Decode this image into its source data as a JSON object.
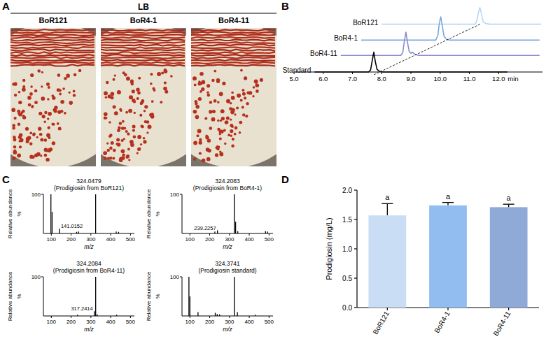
{
  "plates": {
    "panel_label": "A",
    "medium": "LB",
    "strains": [
      "BoR121",
      "BoR4-1",
      "BoR4-11"
    ]
  },
  "chart_data": [
    {
      "type": "line",
      "panel_label": "B",
      "xlabel": "min",
      "xlim": [
        5,
        13.5
      ],
      "xticks": [
        {
          "value": 5,
          "label": "5.0"
        },
        {
          "value": 6,
          "label": "6.0"
        },
        {
          "value": 7,
          "label": "7.0"
        },
        {
          "value": 8,
          "label": "8.0"
        },
        {
          "value": 9,
          "label": "9.0"
        },
        {
          "value": 10,
          "label": "10.0"
        },
        {
          "value": 11,
          "label": "11.0"
        },
        {
          "value": 12,
          "label": "12.0"
        }
      ],
      "ylim": [
        0,
        100
      ],
      "tick_labels": "x",
      "series": [
        {
          "name": "BoR121",
          "color": "#bcd7f0",
          "x": [
            8.0,
            11.2,
            11.26,
            11.31,
            11.36,
            11.41,
            11.47,
            11.56,
            11.7,
            13.45
          ],
          "values": [
            72,
            72,
            78,
            90,
            97,
            88,
            76,
            73,
            72,
            72
          ]
        },
        {
          "name": "BoR4-1",
          "color": "#7ea6da",
          "x": [
            7.3,
            9.85,
            9.92,
            9.97,
            10.02,
            10.07,
            10.13,
            10.22,
            10.35,
            13.4
          ],
          "values": [
            48,
            48,
            55,
            73,
            83,
            70,
            54,
            49,
            48,
            48
          ]
        },
        {
          "name": "BoR4-11",
          "color": "#8b8ccf",
          "x": [
            6.6,
            8.65,
            8.72,
            8.78,
            8.83,
            8.88,
            8.94,
            9.0,
            9.05,
            9.12,
            9.25,
            13.4
          ],
          "values": [
            25,
            25,
            29,
            48,
            60,
            45,
            31,
            28,
            30,
            27,
            25,
            25
          ]
        },
        {
          "name": "Standard",
          "color": "#000000",
          "x": [
            5.7,
            7.55,
            7.62,
            7.68,
            7.73,
            7.78,
            7.84,
            7.92,
            8.05,
            12.3
          ],
          "values": [
            0,
            0,
            3,
            18,
            30,
            16,
            4,
            1,
            0,
            0
          ]
        }
      ]
    },
    {
      "type": "bar",
      "panel_label": "C",
      "title": "324.0479",
      "subtitle": "(Prodigiosin from BoR121)",
      "x": [
        98,
        104,
        141.0152,
        228,
        238,
        324.0479,
        428,
        440
      ],
      "values": [
        100,
        55,
        12,
        4,
        5,
        100,
        5,
        4
      ],
      "color": "#000000",
      "xlim": [
        60,
        520
      ],
      "xticks": [
        100,
        200,
        300,
        400,
        500
      ],
      "ylim": [
        0,
        100
      ],
      "yticks": [
        100
      ],
      "xlabel": "m/z",
      "ylabel": "Relative abundance",
      "ylabel_unit": "%",
      "annotations": [
        {
          "text": "141.0152",
          "x": 141.0152,
          "y": 12
        }
      ]
    },
    {
      "type": "bar",
      "title": "324.2083",
      "subtitle": "(Prodigiosin from BoR4-1)",
      "x": [
        226,
        239.2257,
        324.2083,
        331,
        342,
        482,
        492
      ],
      "values": [
        5,
        8,
        100,
        30,
        6,
        6,
        5
      ],
      "color": "#000000",
      "xlim": [
        60,
        520
      ],
      "xticks": [
        100,
        200,
        300,
        400,
        500
      ],
      "ylim": [
        0,
        100
      ],
      "yticks": [
        100
      ],
      "xlabel": "m/z",
      "ylabel": "Relative abundance",
      "ylabel_unit": "%",
      "annotations": [
        {
          "text": "239.2257",
          "x": 239.2257,
          "y": 8
        }
      ]
    },
    {
      "type": "bar",
      "title": "324.2084",
      "subtitle": "(Prodigiosin from BoR4-11)",
      "x": [
        232,
        317.2414,
        324.2084,
        332,
        430
      ],
      "values": [
        3,
        12,
        100,
        4,
        3
      ],
      "color": "#000000",
      "xlim": [
        60,
        520
      ],
      "xticks": [
        100,
        200,
        300,
        400,
        500
      ],
      "ylim": [
        0,
        100
      ],
      "yticks": [
        100
      ],
      "xlabel": "m/z",
      "ylabel": "Relative abundance",
      "ylabel_unit": "%",
      "annotations": [
        {
          "text": "317.2414",
          "x": 317.2414,
          "y": 12
        }
      ]
    },
    {
      "type": "bar",
      "title": "324.3741",
      "subtitle": "(Prodigiosin standard)",
      "x": [
        95,
        100,
        141,
        228,
        238,
        250,
        324.3741,
        340,
        430
      ],
      "values": [
        100,
        50,
        10,
        8,
        5,
        4,
        100,
        10,
        3
      ],
      "color": "#000000",
      "xlim": [
        60,
        520
      ],
      "xticks": [
        100,
        200,
        300,
        400,
        500
      ],
      "ylim": [
        0,
        100
      ],
      "yticks": [
        100
      ],
      "xlabel": "m/z",
      "ylabel": "Relative abundance",
      "ylabel_unit": "%"
    },
    {
      "type": "bar",
      "panel_label": "D",
      "categories": [
        "BoR121",
        "BoR4-1",
        "BoR4-11"
      ],
      "values": [
        1.57,
        1.74,
        1.71
      ],
      "errors": [
        0.2,
        0.05,
        0.05
      ],
      "significance": [
        "a",
        "a",
        "a"
      ],
      "colors": [
        "#c9def4",
        "#92bdf0",
        "#8faad6"
      ],
      "ylabel": "Prodigiosin (mg/L)",
      "ylim": [
        0,
        2
      ],
      "yticks": [
        {
          "value": 0,
          "label": "0.0"
        },
        {
          "value": 0.5,
          "label": "0.5"
        },
        {
          "value": 1,
          "label": "1.0"
        },
        {
          "value": 1.5,
          "label": "1.5"
        },
        {
          "value": 2,
          "label": "2.0"
        }
      ]
    }
  ]
}
